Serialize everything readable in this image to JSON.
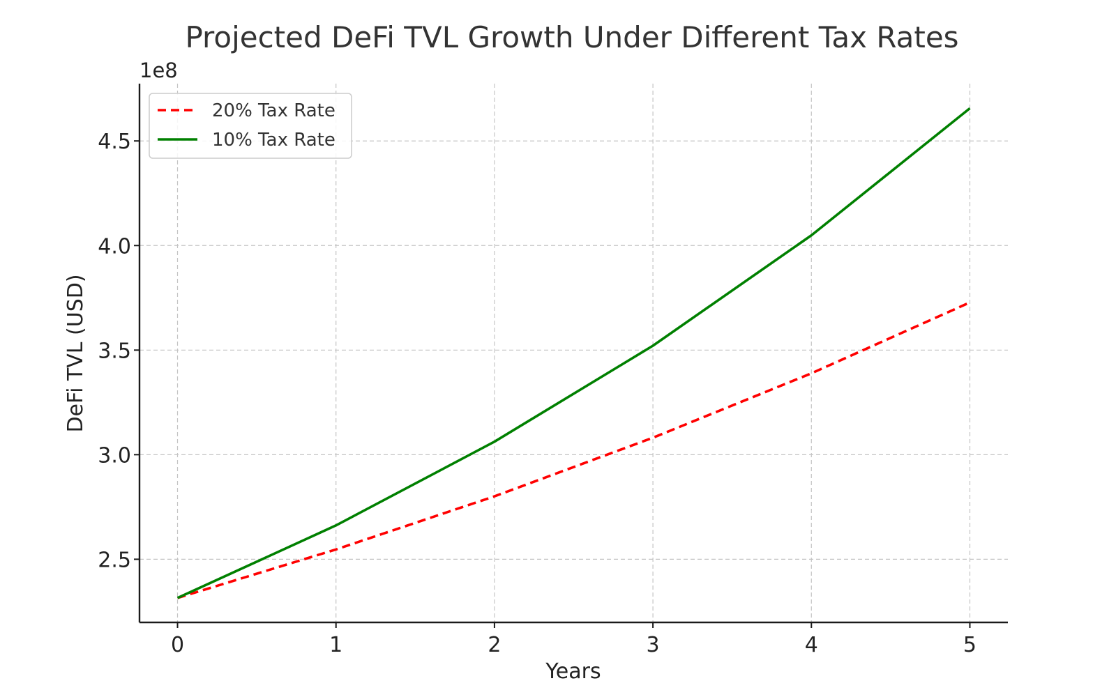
{
  "chart_data": {
    "type": "line",
    "title": "Projected DeFi TVL Growth Under Different Tax Rates",
    "xlabel": "Years",
    "ylabel": "DeFi TVL (USD)",
    "y_offset_label": "1e8",
    "x": [
      0,
      1,
      2,
      3,
      4,
      5
    ],
    "x_ticks": [
      "0",
      "1",
      "2",
      "3",
      "4",
      "5"
    ],
    "xlim": [
      -0.24,
      5.24
    ],
    "y_ticks": [
      250000000,
      300000000,
      350000000,
      400000000,
      450000000
    ],
    "y_tick_labels": [
      "2.5",
      "3.0",
      "3.5",
      "4.0",
      "4.5"
    ],
    "ylim": [
      219800000,
      477400000
    ],
    "grid": true,
    "legend_position": "upper-left",
    "series": [
      {
        "name": "20% Tax Rate",
        "values": [
          231500000,
          254700000,
          280100000,
          308100000,
          338900000,
          372800000
        ],
        "color": "#ff0000",
        "line_style": "dashed"
      },
      {
        "name": "10% Tax Rate",
        "values": [
          231500000,
          266200000,
          306200000,
          352100000,
          404900000,
          465600000
        ],
        "color": "#008000",
        "line_style": "solid"
      }
    ]
  }
}
